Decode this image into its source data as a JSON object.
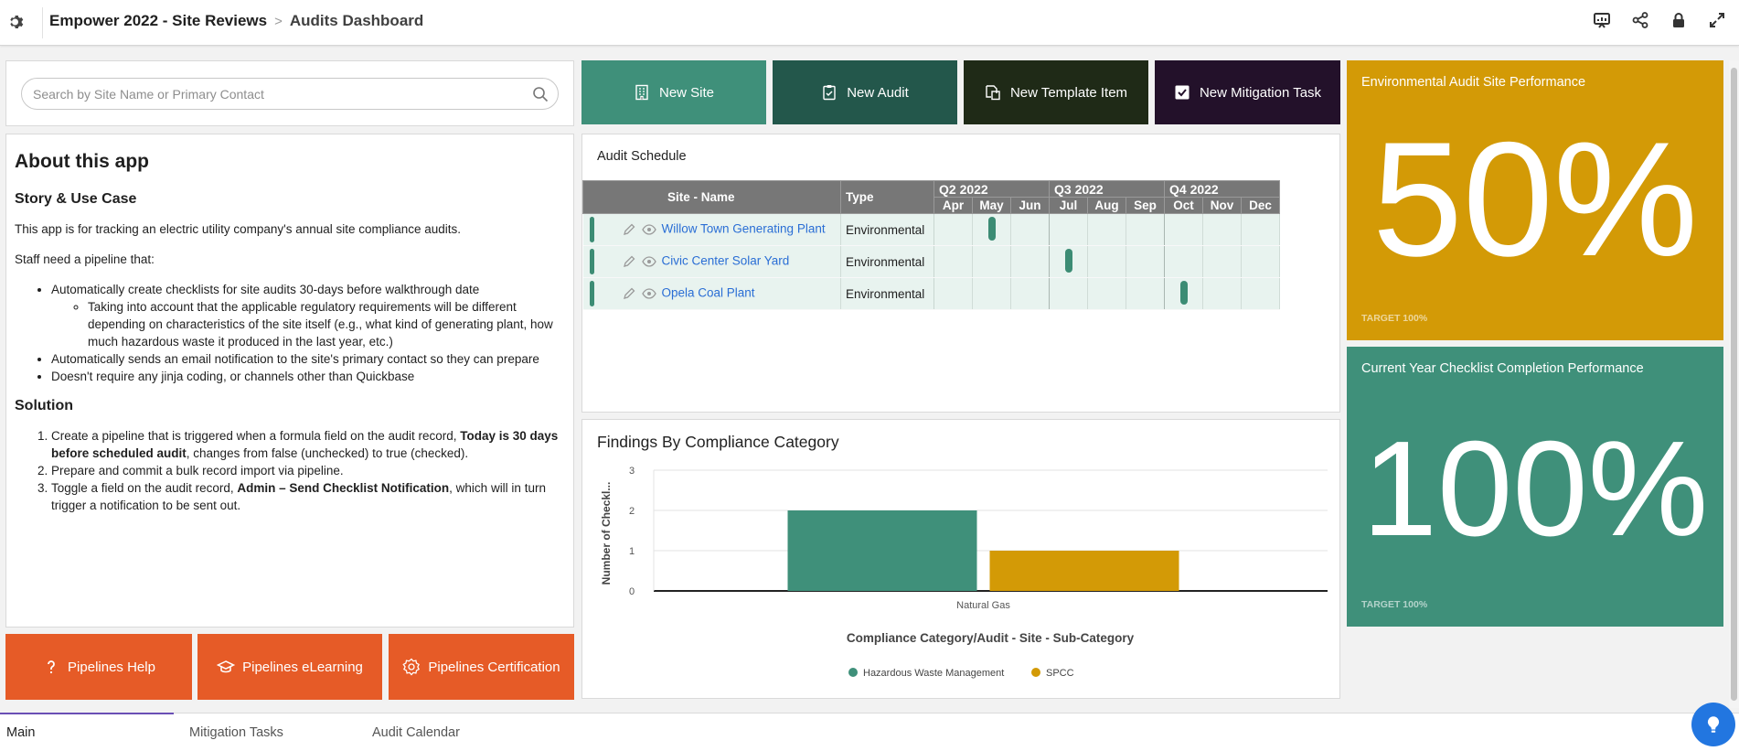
{
  "header": {
    "app_name": "Empower 2022 - Site Reviews",
    "separator": ">",
    "page_name": "Audits Dashboard"
  },
  "search": {
    "placeholder": "Search by Site Name or Primary Contact"
  },
  "about": {
    "title": "About this app",
    "story_heading": "Story & Use Case",
    "intro": "This app is for tracking an electric utility company's annual site compliance audits.",
    "need_intro": "Staff need a pipeline that:",
    "bullets": [
      "Automatically create checklists for site audits 30-days before walkthrough date",
      "Taking into account that the applicable regulatory requirements will be different depending on characteristics of the site itself (e.g., what kind of generating plant, how much hazardous waste it produced in the last year, etc.)",
      "Automatically sends an email notification to the site's primary contact so they can prepare",
      "Doesn't require any jinja coding, or channels other than Quickbase"
    ],
    "solution_heading": "Solution",
    "step1_pre": "Create a pipeline that is triggered when a formula field on the audit record, ",
    "step1_bold": "Today is 30 days before scheduled audit",
    "step1_post": ", changes from false (unchecked) to true (checked).",
    "step2": "Prepare and commit a bulk record import via pipeline.",
    "step3_pre": "Toggle a field on the audit record, ",
    "step3_bold": "Admin – Send Checklist Notification",
    "step3_post": ", which will in turn trigger a notification to be sent out."
  },
  "left_buttons": {
    "help": "Pipelines Help",
    "elearning": "Pipelines eLearning",
    "certification": "Pipelines Certification"
  },
  "actions": {
    "new_site": "New Site",
    "new_audit": "New Audit",
    "new_template_item": "New Template Item",
    "new_mitigation_task": "New Mitigation Task"
  },
  "schedule": {
    "title": "Audit Schedule",
    "col_site": "Site - Name",
    "col_type": "Type",
    "quarters": [
      "Q2 2022",
      "Q3 2022",
      "Q4 2022"
    ],
    "months": [
      "Apr",
      "May",
      "Jun",
      "Jul",
      "Aug",
      "Sep",
      "Oct",
      "Nov",
      "Dec"
    ],
    "rows": [
      {
        "site": "Willow Town Generating Plant",
        "type": "Environmental",
        "month_index": 1
      },
      {
        "site": "Civic Center Solar Yard",
        "type": "Environmental",
        "month_index": 3
      },
      {
        "site": "Opela Coal Plant",
        "type": "Environmental",
        "month_index": 6
      }
    ]
  },
  "chart_data": {
    "type": "bar",
    "title": "Findings By Compliance Category",
    "xlabel": "Compliance Category/Audit - Site - Sub-Category",
    "ylabel": "Number of Checkl...",
    "categories": [
      "Natural Gas"
    ],
    "series": [
      {
        "name": "Hazardous Waste Management",
        "values": [
          2
        ],
        "color": "#3f907a"
      },
      {
        "name": "SPCC",
        "values": [
          1
        ],
        "color": "#d39a06"
      }
    ],
    "ylim": [
      0,
      3
    ],
    "yticks": [
      0,
      1,
      2,
      3
    ],
    "grid": true,
    "legend": "bottom"
  },
  "kpis": [
    {
      "title": "Environmental Audit Site Performance",
      "value": "50%",
      "target": "TARGET 100%",
      "color": "#d39a06"
    },
    {
      "title": "Current Year Checklist Completion Performance",
      "value": "100%",
      "target": "TARGET 100%",
      "color": "#3f907a"
    }
  ],
  "tabs": [
    "Main",
    "Mitigation Tasks",
    "Audit Calendar"
  ],
  "colors": {
    "teal": "#3f907a",
    "dark_teal": "#23574b",
    "dark_olive": "#1f2a17",
    "dark_purple": "#23112a",
    "orange": "#e65b27",
    "gold": "#d39a06"
  }
}
